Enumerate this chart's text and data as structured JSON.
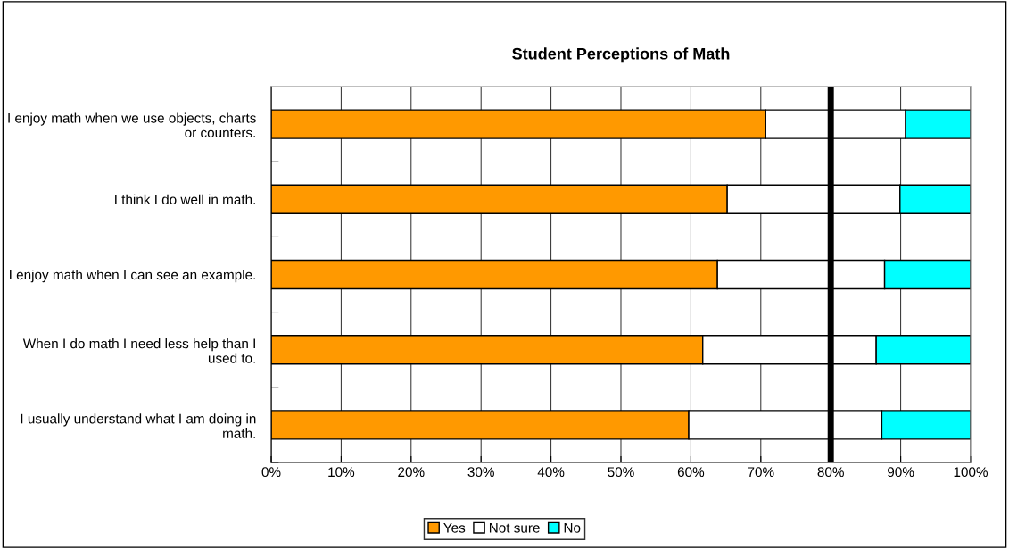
{
  "chart_data": {
    "type": "bar",
    "orientation": "horizontal",
    "stacked": true,
    "title": "Student Perceptions of Math",
    "categories": [
      "I enjoy math when we use objects, charts or counters.",
      "I think I do well in math.",
      "I enjoy math when I can see an example.",
      "When I do math I need less help than I used to.",
      "I usually understand what I am doing in math."
    ],
    "series": [
      {
        "name": "Yes",
        "color": "#ff9900",
        "values": [
          70.7,
          65.2,
          63.8,
          61.7,
          59.7
        ]
      },
      {
        "name": "Not sure",
        "color": "#ffffff",
        "values": [
          20.0,
          24.7,
          23.9,
          24.8,
          27.6
        ]
      },
      {
        "name": "No",
        "color": "#00ffff",
        "values": [
          9.3,
          10.1,
          12.3,
          13.5,
          12.7
        ]
      }
    ],
    "xlim": [
      0,
      100
    ],
    "xticks": [
      {
        "value": 0,
        "label": "0%"
      },
      {
        "value": 10,
        "label": "10%"
      },
      {
        "value": 20,
        "label": "20%"
      },
      {
        "value": 30,
        "label": "30%"
      },
      {
        "value": 40,
        "label": "40%"
      },
      {
        "value": 50,
        "label": "50%"
      },
      {
        "value": 60,
        "label": "60%"
      },
      {
        "value": 70,
        "label": "70%"
      },
      {
        "value": 80,
        "label": "80%"
      },
      {
        "value": 90,
        "label": "90%"
      },
      {
        "value": 100,
        "label": "100%"
      }
    ],
    "ref_lines": [
      {
        "axis": "x",
        "value": 80,
        "color": "#000000"
      }
    ],
    "grid": "x",
    "legend": "bottom"
  }
}
